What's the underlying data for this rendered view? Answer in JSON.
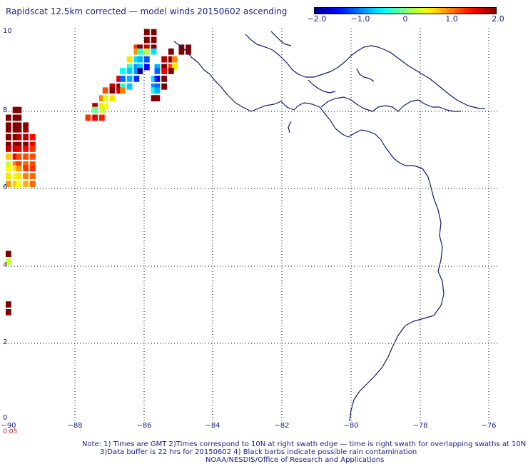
{
  "title": "Rapidscat 12.5km corrected — model winds 20150602 ascending",
  "colorbar": {
    "ticks": [
      "−2.0",
      "−1.0",
      "0",
      "1.0",
      "2.0"
    ],
    "tick_values": [
      -2.0,
      -1.0,
      0,
      1.0,
      2.0
    ],
    "range": [
      -2.0,
      2.0
    ]
  },
  "map": {
    "lon_range": [
      -90,
      -75.5
    ],
    "lat_range": [
      0,
      10
    ],
    "x_labels": [
      "−90",
      "−88",
      "−86",
      "−84",
      "−82",
      "−80",
      "−78",
      "−76"
    ],
    "y_labels": [
      "10",
      "8",
      "6",
      "4",
      "2",
      "0"
    ],
    "coastline_color": "#0d1b6e",
    "grid": "dotted"
  },
  "time_label": "0:05",
  "notes": [
    "Note: 1) Times are GMT 2)Times correspond to 10N at right swath edge — time is right swath for overlapping swaths at 10N",
    "3)Data buffer is 22 hrs for 20150602 4) Black barbs indicate possible rain contamination",
    "NOAA/NESDIS/Office of Research and Applications"
  ],
  "chart_data": {
    "type": "heatmap",
    "title": "Rapidscat 12.5km corrected — model winds 20150602 ascending",
    "x_range": [
      -90,
      -75.5
    ],
    "y_range": [
      0,
      10
    ],
    "value_range": [
      -2.0,
      2.0
    ],
    "cell_size_deg": 0.16,
    "cells": [
      [
        -90.0,
        7.8,
        2.0
      ],
      [
        -90.0,
        7.6,
        2.0
      ],
      [
        -90.0,
        7.5,
        2.0
      ],
      [
        -90.0,
        7.3,
        2.0
      ],
      [
        -90.0,
        7.1,
        2.0
      ],
      [
        -90.0,
        7.0,
        1.7
      ],
      [
        -90.0,
        6.8,
        0.7
      ],
      [
        -90.0,
        6.6,
        0.3
      ],
      [
        -90.0,
        6.5,
        0.5
      ],
      [
        -90.0,
        6.3,
        0.6
      ],
      [
        -90.0,
        6.1,
        0.9
      ],
      [
        -89.8,
        8.0,
        2.0
      ],
      [
        -89.8,
        7.8,
        2.0
      ],
      [
        -89.8,
        7.6,
        2.0
      ],
      [
        -89.8,
        7.5,
        2.0
      ],
      [
        -89.8,
        7.3,
        2.0
      ],
      [
        -89.8,
        7.1,
        1.9
      ],
      [
        -89.8,
        7.0,
        1.7
      ],
      [
        -89.8,
        6.8,
        1.5
      ],
      [
        -89.8,
        6.6,
        1.0
      ],
      [
        -89.8,
        6.5,
        0.6
      ],
      [
        -89.8,
        6.3,
        0.4
      ],
      [
        -89.8,
        6.1,
        0.7
      ],
      [
        -89.7,
        8.0,
        2.0
      ],
      [
        -89.7,
        7.8,
        2.0
      ],
      [
        -89.7,
        7.6,
        2.0
      ],
      [
        -89.7,
        7.5,
        2.0
      ],
      [
        -89.7,
        7.3,
        1.8
      ],
      [
        -89.7,
        7.1,
        2.0
      ],
      [
        -89.7,
        7.0,
        1.6
      ],
      [
        -89.7,
        6.8,
        1.2
      ],
      [
        -89.7,
        6.6,
        1.3
      ],
      [
        -89.7,
        6.5,
        0.9
      ],
      [
        -89.7,
        6.3,
        0.6
      ],
      [
        -89.7,
        6.1,
        0.5
      ],
      [
        -89.5,
        7.6,
        2.0
      ],
      [
        -89.5,
        7.5,
        1.9
      ],
      [
        -89.5,
        7.3,
        1.8
      ],
      [
        -89.5,
        7.1,
        2.0
      ],
      [
        -89.5,
        7.0,
        1.5
      ],
      [
        -89.5,
        6.8,
        1.2
      ],
      [
        -89.5,
        6.6,
        1.1
      ],
      [
        -89.5,
        6.5,
        1.3
      ],
      [
        -89.5,
        6.3,
        1.0
      ],
      [
        -89.5,
        6.1,
        0.8
      ],
      [
        -89.3,
        7.3,
        1.5
      ],
      [
        -89.3,
        7.1,
        1.6
      ],
      [
        -89.3,
        7.0,
        1.3
      ],
      [
        -89.3,
        6.8,
        1.2
      ],
      [
        -89.3,
        6.6,
        1.2
      ],
      [
        -89.3,
        6.5,
        1.3
      ],
      [
        -89.3,
        6.3,
        1.1
      ],
      [
        -89.3,
        6.1,
        1.1
      ],
      [
        -90.0,
        4.3,
        2.0
      ],
      [
        -90.0,
        4.1,
        0.3
      ],
      [
        -90.0,
        3.0,
        2.0
      ],
      [
        -90.0,
        2.8,
        2.0
      ],
      [
        -86.0,
        10.0,
        2.0
      ],
      [
        -86.0,
        9.8,
        2.0
      ],
      [
        -85.8,
        10.0,
        2.0
      ],
      [
        -85.8,
        9.8,
        2.0
      ],
      [
        -85.0,
        9.6,
        2.0
      ],
      [
        -84.8,
        9.6,
        2.0
      ],
      [
        -85.0,
        9.5,
        2.0
      ],
      [
        -84.8,
        9.5,
        2.0
      ],
      [
        -86.3,
        9.6,
        1.3
      ],
      [
        -86.2,
        9.6,
        2.0
      ],
      [
        -86.0,
        9.6,
        1.7
      ],
      [
        -85.8,
        9.6,
        2.0
      ],
      [
        -86.3,
        9.5,
        0.9
      ],
      [
        -86.2,
        9.5,
        -0.3
      ],
      [
        -86.0,
        9.5,
        0.2
      ],
      [
        -85.8,
        9.5,
        -0.6
      ],
      [
        -85.3,
        9.5,
        2.0
      ],
      [
        -86.5,
        9.3,
        0.6
      ],
      [
        -86.3,
        9.3,
        -0.6
      ],
      [
        -86.2,
        9.3,
        -0.8
      ],
      [
        -86.0,
        9.3,
        -1.2
      ],
      [
        -85.5,
        9.3,
        1.8
      ],
      [
        -85.3,
        9.3,
        2.0
      ],
      [
        -85.2,
        9.3,
        1.0
      ],
      [
        -86.5,
        9.1,
        -0.3
      ],
      [
        -86.3,
        9.1,
        -0.9
      ],
      [
        -86.2,
        9.1,
        -0.7
      ],
      [
        -86.0,
        9.1,
        -1.5
      ],
      [
        -85.7,
        9.1,
        -0.8
      ],
      [
        -85.5,
        9.1,
        2.0
      ],
      [
        -85.3,
        9.1,
        1.3
      ],
      [
        -85.2,
        9.1,
        0.6
      ],
      [
        -86.7,
        9.0,
        -0.5
      ],
      [
        -86.5,
        9.0,
        -0.7
      ],
      [
        -86.3,
        9.0,
        -0.9
      ],
      [
        -86.2,
        9.0,
        -2.0
      ],
      [
        -85.7,
        9.0,
        -1.1
      ],
      [
        -85.5,
        9.0,
        1.6
      ],
      [
        -85.3,
        9.0,
        2.0
      ],
      [
        -86.8,
        8.8,
        1.6
      ],
      [
        -86.7,
        8.8,
        -1.1
      ],
      [
        -86.5,
        8.8,
        -0.8
      ],
      [
        -86.3,
        8.8,
        -1.3
      ],
      [
        -85.8,
        8.8,
        -0.6
      ],
      [
        -85.7,
        8.8,
        -1.5
      ],
      [
        -85.5,
        8.8,
        2.0
      ],
      [
        -87.0,
        8.6,
        1.7
      ],
      [
        -86.8,
        8.6,
        1.9
      ],
      [
        -86.7,
        8.6,
        -0.3
      ],
      [
        -86.5,
        8.6,
        -0.7
      ],
      [
        -85.8,
        8.6,
        -0.9
      ],
      [
        -85.7,
        8.6,
        -1.1
      ],
      [
        -85.5,
        8.6,
        2.0
      ],
      [
        -87.2,
        8.5,
        1.2
      ],
      [
        -87.0,
        8.5,
        2.0
      ],
      [
        -86.8,
        8.5,
        1.7
      ],
      [
        -86.7,
        8.5,
        1.0
      ],
      [
        -85.8,
        8.5,
        -0.4
      ],
      [
        -85.7,
        8.5,
        -0.8
      ],
      [
        -87.3,
        8.3,
        1.0
      ],
      [
        -87.2,
        8.3,
        0.4
      ],
      [
        -87.0,
        8.3,
        0.6
      ],
      [
        -85.8,
        8.3,
        2.0
      ],
      [
        -85.7,
        8.3,
        2.0
      ],
      [
        -87.5,
        8.1,
        1.8
      ],
      [
        -87.3,
        8.1,
        0.6
      ],
      [
        -87.2,
        8.1,
        0.5
      ],
      [
        -87.5,
        8.0,
        -0.1
      ],
      [
        -87.3,
        8.0,
        0.3
      ],
      [
        -87.7,
        7.8,
        1.3
      ],
      [
        -87.5,
        7.8,
        1.6
      ],
      [
        -87.3,
        7.8,
        1.4
      ]
    ]
  }
}
